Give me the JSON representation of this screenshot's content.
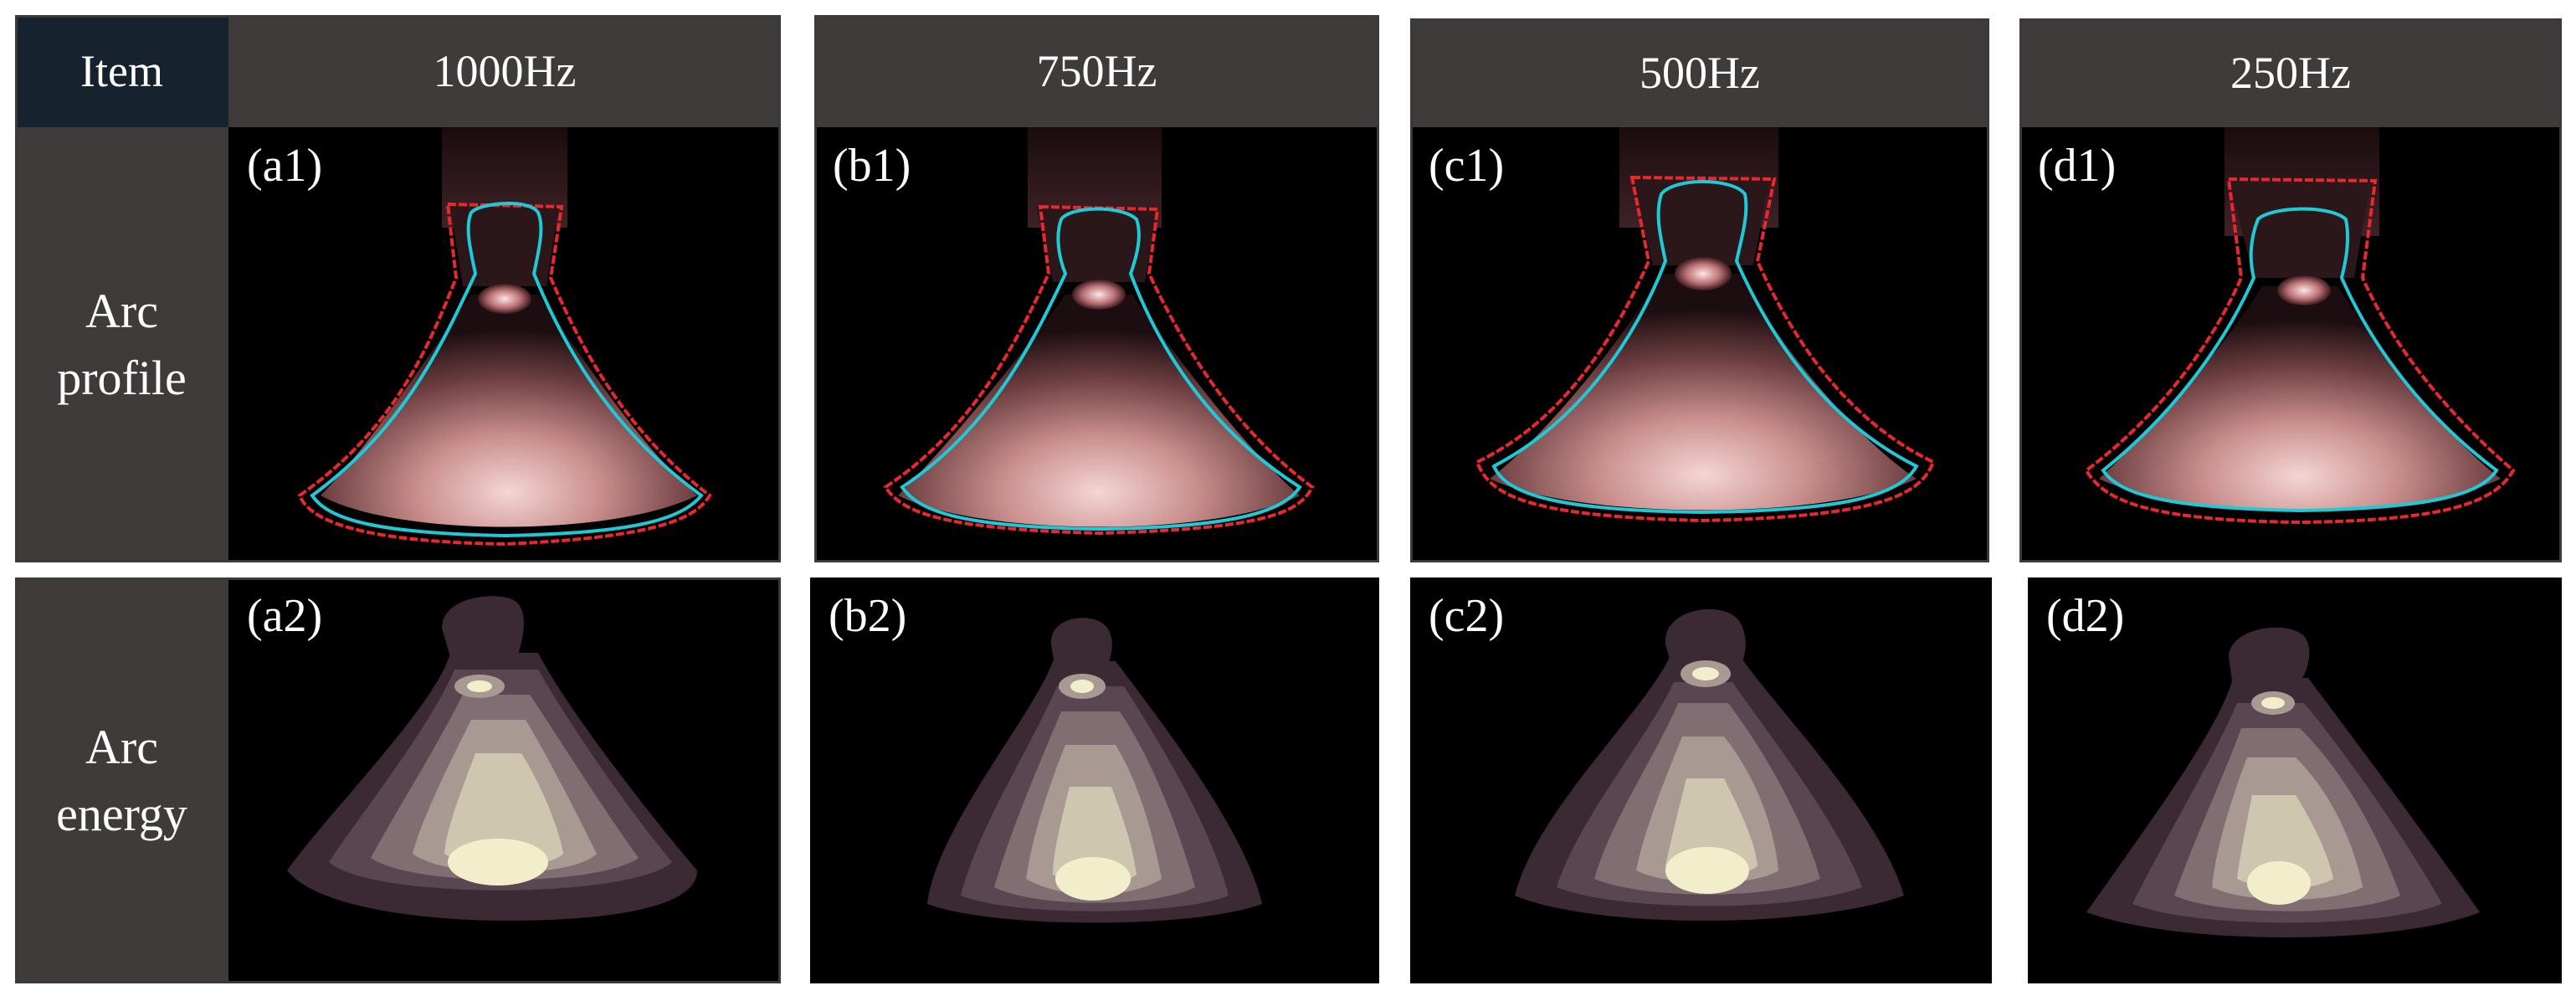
{
  "header": {
    "item": "Item",
    "columns": [
      "1000Hz",
      "750Hz",
      "500Hz",
      "250Hz"
    ]
  },
  "rows": [
    {
      "label_line1": "Arc",
      "label_line2": "profile"
    },
    {
      "label_line1": "Arc",
      "label_line2": "energy"
    }
  ],
  "panels": {
    "profile": [
      "(a1)",
      "(b1)",
      "(c1)",
      "(d1)"
    ],
    "energy": [
      "(a2)",
      "(b2)",
      "(c2)",
      "(d2)"
    ]
  },
  "colors": {
    "header_bg": "#403b3b",
    "item_bg": "#16222e",
    "outer_contour": "#e8282d",
    "inner_contour": "#1fc9d6",
    "energy_levels": [
      "#3b2a33",
      "#5a4650",
      "#806e72",
      "#a89a92",
      "#cfc6b0",
      "#f2eecb"
    ]
  }
}
